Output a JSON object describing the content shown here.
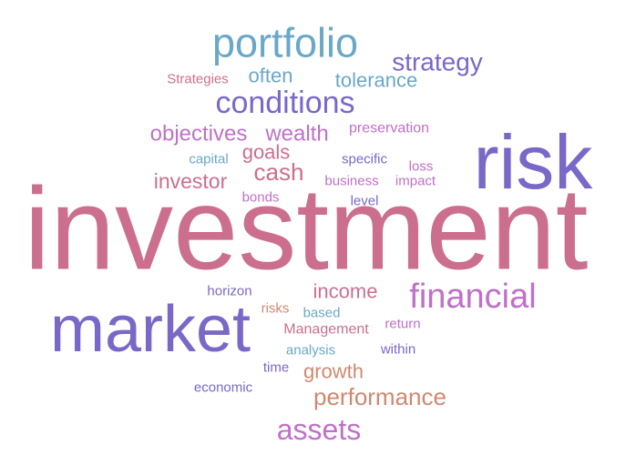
{
  "chart_data": {
    "type": "wordcloud",
    "words": [
      {
        "text": "portfolio",
        "color": "#6aa8c8"
      },
      {
        "text": "strategy",
        "color": "#7a68c8"
      },
      {
        "text": "Strategies",
        "color": "#cc6f8f"
      },
      {
        "text": "often",
        "color": "#6aa8c8"
      },
      {
        "text": "tolerance",
        "color": "#6aa8c8"
      },
      {
        "text": "conditions",
        "color": "#7a68c8"
      },
      {
        "text": "preservation",
        "color": "#c070c8"
      },
      {
        "text": "objectives",
        "color": "#c070c8"
      },
      {
        "text": "wealth",
        "color": "#c070c8"
      },
      {
        "text": "risk",
        "color": "#7a68c8"
      },
      {
        "text": "goals",
        "color": "#cc6f8f"
      },
      {
        "text": "capital",
        "color": "#6aa8c8"
      },
      {
        "text": "specific",
        "color": "#7a68c8"
      },
      {
        "text": "loss",
        "color": "#c070c8"
      },
      {
        "text": "cash",
        "color": "#cc6f8f"
      },
      {
        "text": "investor",
        "color": "#cc6f8f"
      },
      {
        "text": "business",
        "color": "#c070c8"
      },
      {
        "text": "impact",
        "color": "#c070c8"
      },
      {
        "text": "bonds",
        "color": "#c070c8"
      },
      {
        "text": "level",
        "color": "#7a68c8"
      },
      {
        "text": "investment",
        "color": "#cc6f8f"
      },
      {
        "text": "horizon",
        "color": "#7a68c8"
      },
      {
        "text": "income",
        "color": "#cc6f8f"
      },
      {
        "text": "financial",
        "color": "#c070c8"
      },
      {
        "text": "risks",
        "color": "#d08870"
      },
      {
        "text": "based",
        "color": "#6aa8c8"
      },
      {
        "text": "market",
        "color": "#7a68c8"
      },
      {
        "text": "Management",
        "color": "#cc6f8f"
      },
      {
        "text": "return",
        "color": "#c070c8"
      },
      {
        "text": "analysis",
        "color": "#6aa8c8"
      },
      {
        "text": "within",
        "color": "#7a68c8"
      },
      {
        "text": "time",
        "color": "#7a68c8"
      },
      {
        "text": "growth",
        "color": "#d08870"
      },
      {
        "text": "economic",
        "color": "#7a68c8"
      },
      {
        "text": "performance",
        "color": "#d08870"
      },
      {
        "text": "assets",
        "color": "#c070c8"
      }
    ]
  }
}
